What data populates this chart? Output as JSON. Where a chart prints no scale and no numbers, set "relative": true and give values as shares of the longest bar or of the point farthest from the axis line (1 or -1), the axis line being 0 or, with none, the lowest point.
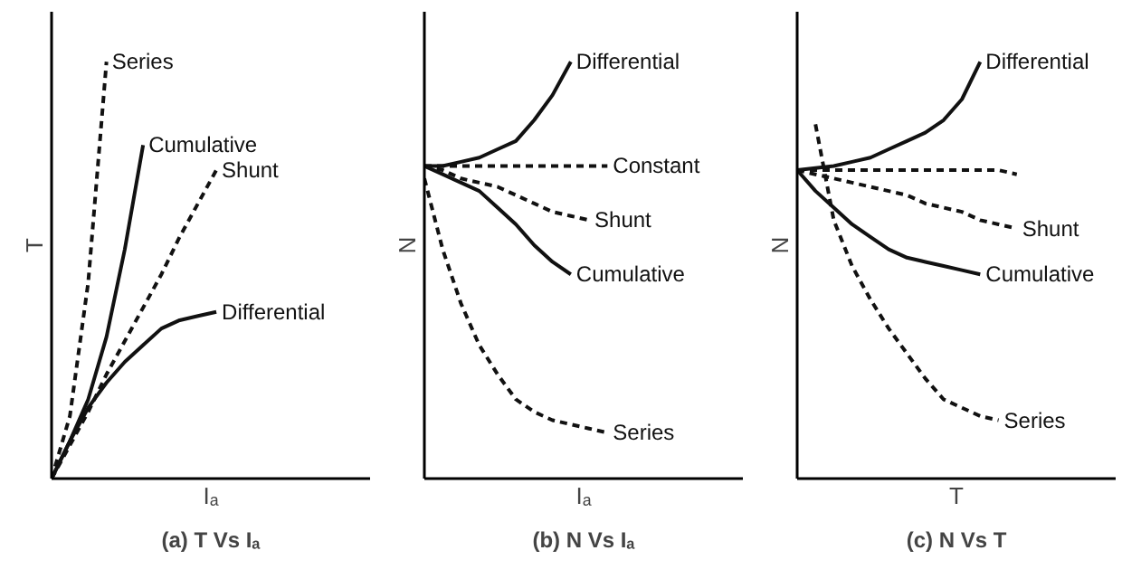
{
  "chart_data": [
    {
      "type": "line",
      "relative": true,
      "title": "(a) T Vs Iₐ",
      "xlabel": "Iₐ",
      "ylabel": "T",
      "categories": [
        null,
        null,
        null,
        null,
        null,
        null,
        null,
        null,
        null,
        null,
        null,
        null,
        null
      ],
      "series": [
        {
          "name": "Series",
          "color": "#111111",
          "line_style": "dashed",
          "values": [
            0,
            0.15,
            0.47,
            1,
            null,
            null,
            null,
            null,
            null,
            null,
            null,
            null,
            null
          ]
        },
        {
          "name": "Cumulative",
          "color": "#111111",
          "line_style": "solid",
          "values": [
            0,
            0.09,
            0.19,
            0.34,
            0.55,
            0.8,
            null,
            null,
            null,
            null,
            null,
            null,
            null
          ]
        },
        {
          "name": "Shunt",
          "color": "#111111",
          "line_style": "dashed",
          "values": [
            0,
            0.08,
            0.16,
            0.25,
            0.33,
            0.41,
            0.49,
            0.58,
            0.66,
            0.74,
            null,
            null,
            null
          ]
        },
        {
          "name": "Differential",
          "color": "#111111",
          "line_style": "solid",
          "values": [
            0,
            0.09,
            0.17,
            0.23,
            0.28,
            0.32,
            0.36,
            0.38,
            0.39,
            0.4,
            null,
            null,
            null
          ]
        }
      ]
    },
    {
      "type": "line",
      "relative": true,
      "title": "(b) N Vs Iₐ",
      "xlabel": "Iₐ",
      "ylabel": "N",
      "categories": [
        null,
        null,
        null,
        null,
        null,
        null,
        null,
        null,
        null,
        null,
        null,
        null,
        null
      ],
      "series": [
        {
          "name": "Differential",
          "color": "#111111",
          "line_style": "solid",
          "values": [
            0.75,
            0.75,
            0.76,
            0.77,
            0.79,
            0.81,
            0.86,
            0.92,
            1,
            null,
            null,
            null,
            null
          ]
        },
        {
          "name": "Constant",
          "color": "#111111",
          "line_style": "dashed",
          "values": [
            0.75,
            0.75,
            0.75,
            0.75,
            0.75,
            0.75,
            0.75,
            0.75,
            0.75,
            0.75,
            0.75,
            null,
            null
          ]
        },
        {
          "name": "Shunt",
          "color": "#111111",
          "line_style": "dashed",
          "values": [
            0.75,
            0.74,
            0.72,
            0.71,
            0.7,
            0.68,
            0.66,
            0.64,
            0.63,
            0.62,
            null,
            null,
            null
          ]
        },
        {
          "name": "Cumulative",
          "color": "#111111",
          "line_style": "solid",
          "values": [
            0.75,
            0.73,
            0.71,
            0.69,
            0.65,
            0.61,
            0.56,
            0.52,
            0.49,
            null,
            null,
            null,
            null
          ]
        },
        {
          "name": "Series",
          "color": "#111111",
          "line_style": "dashed",
          "values": [
            0.72,
            0.55,
            0.42,
            0.32,
            0.25,
            0.19,
            0.16,
            0.14,
            0.13,
            0.12,
            0.11,
            null,
            null
          ]
        }
      ]
    },
    {
      "type": "line",
      "relative": true,
      "title": "(c) N Vs T",
      "xlabel": "T",
      "ylabel": "N",
      "categories": [
        null,
        null,
        null,
        null,
        null,
        null,
        null,
        null,
        null,
        null,
        null,
        null,
        null
      ],
      "series": [
        {
          "name": "Differential",
          "color": "#111111",
          "line_style": "solid",
          "values": [
            0.74,
            0.745,
            0.75,
            0.76,
            0.77,
            0.79,
            0.81,
            0.83,
            0.86,
            0.91,
            1,
            null,
            null
          ]
        },
        {
          "color": "#111111",
          "line_style": "dashed",
          "values": [
            0.74,
            0.74,
            0.74,
            0.74,
            0.74,
            0.74,
            0.74,
            0.74,
            0.74,
            0.74,
            0.74,
            0.74,
            0.73
          ]
        },
        {
          "name": "Shunt",
          "color": "#111111",
          "line_style": "dashed",
          "values": [
            0.74,
            0.73,
            0.72,
            0.71,
            0.7,
            0.69,
            0.68,
            0.66,
            0.65,
            0.64,
            0.62,
            0.61,
            0.6
          ]
        },
        {
          "name": "Cumulative",
          "color": "#111111",
          "line_style": "solid",
          "values": [
            0.74,
            0.69,
            0.65,
            0.61,
            0.58,
            0.55,
            0.53,
            0.52,
            0.51,
            0.5,
            0.49,
            null,
            null
          ]
        },
        {
          "name": "Series",
          "color": "#111111",
          "line_style": "dashed",
          "values": [
            null,
            0.85,
            0.62,
            0.51,
            0.43,
            0.36,
            0.3,
            0.24,
            0.19,
            0.17,
            0.15,
            0.14,
            null
          ]
        }
      ]
    }
  ]
}
